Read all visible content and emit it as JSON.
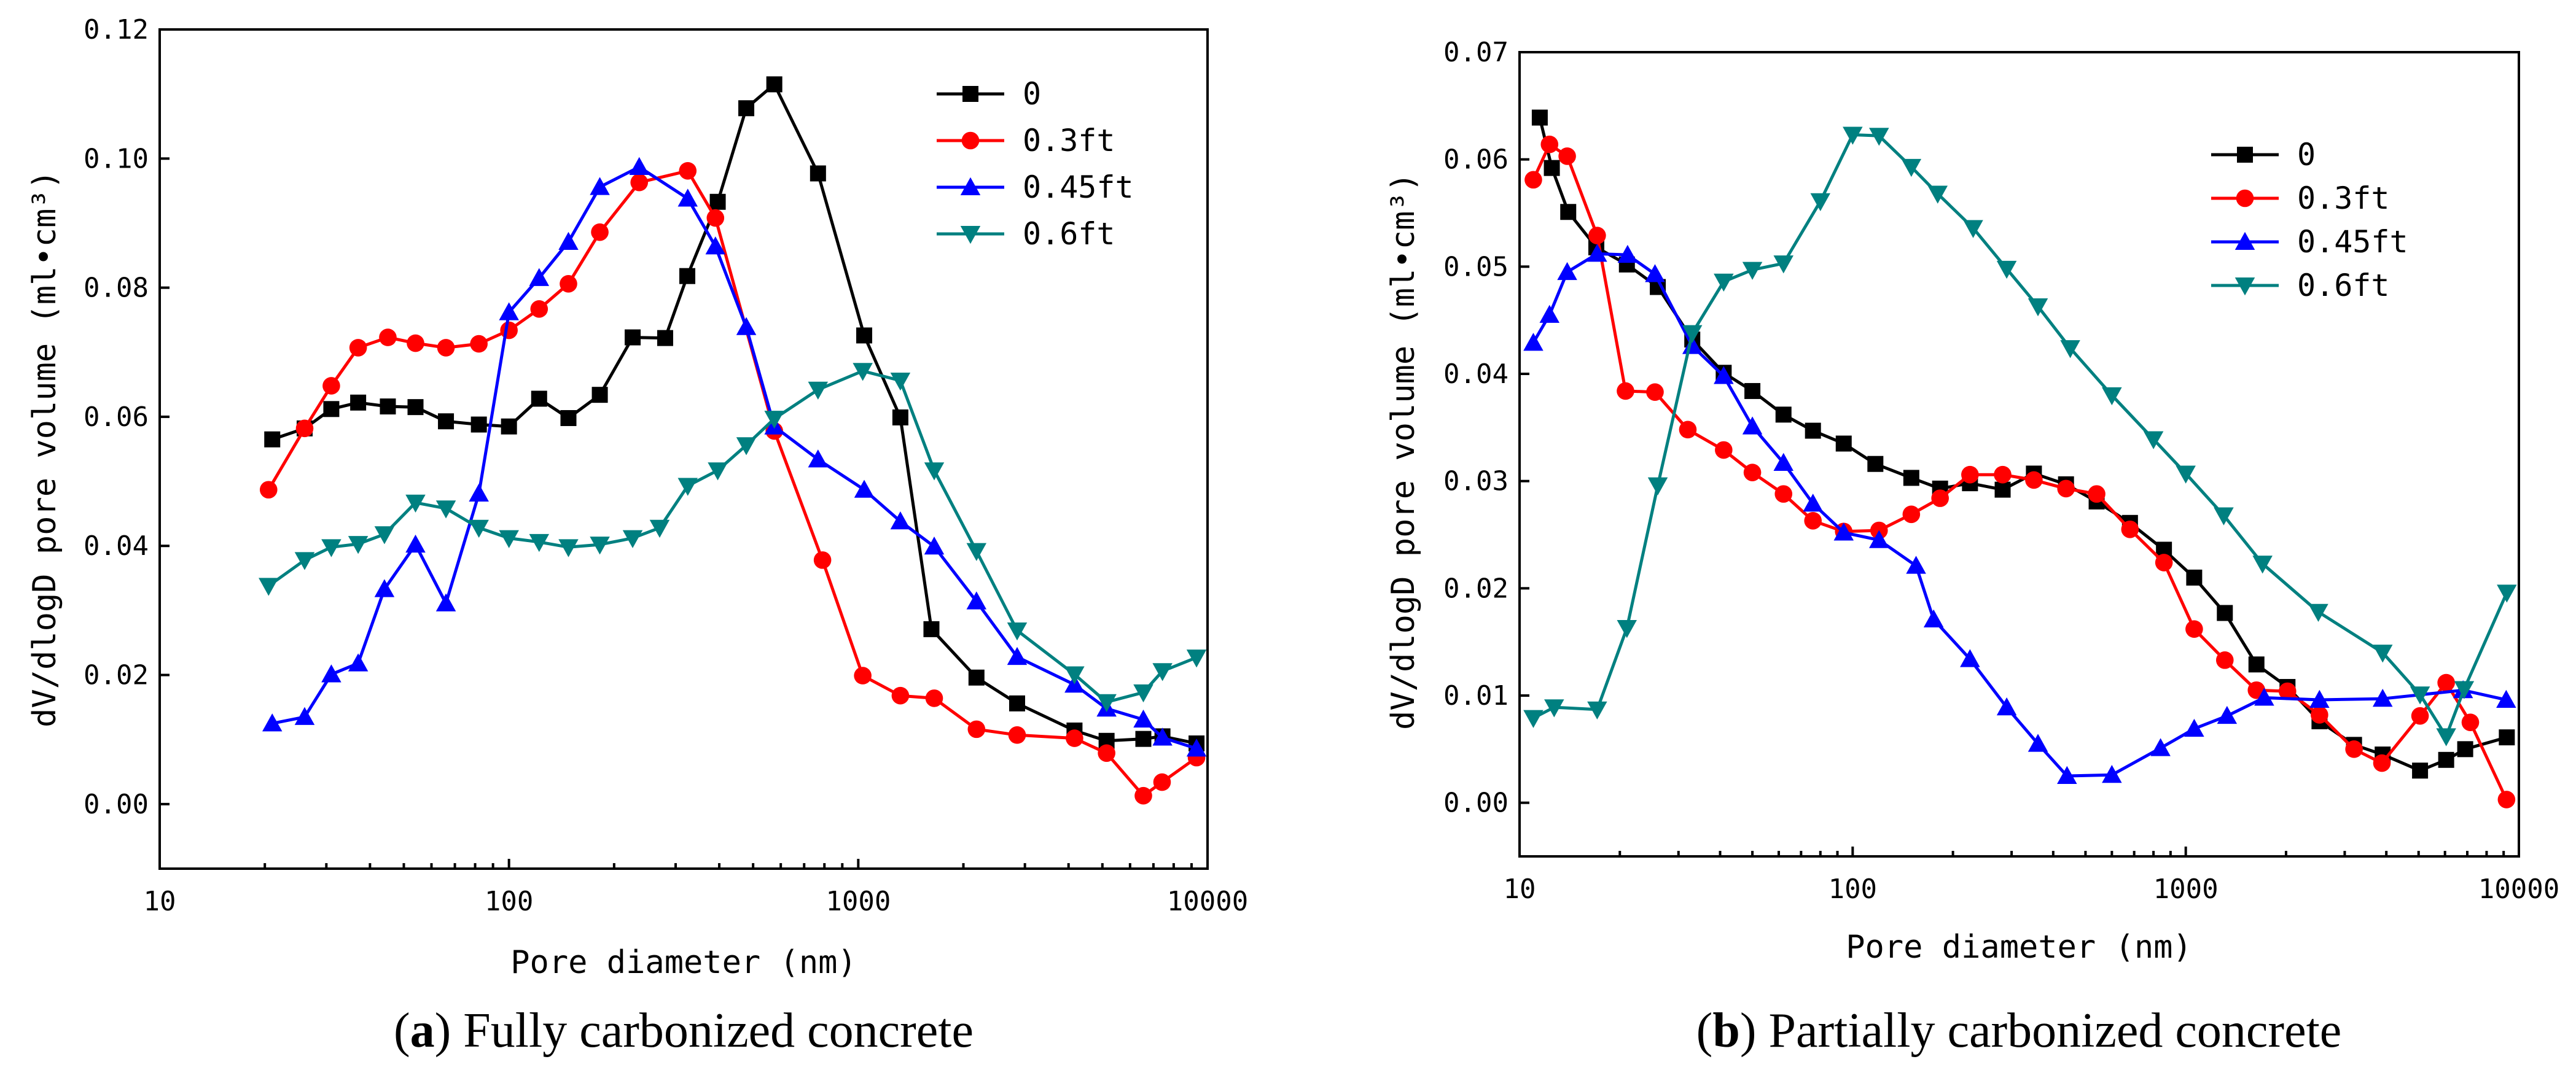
{
  "chart_data": [
    {
      "type": "line",
      "panel_label": "a",
      "caption": "Fully carbonized concrete",
      "xlabel": "Pore diameter (nm)",
      "ylabel": "dV/dlogD pore volume (ml•cm³)",
      "xscale": "log",
      "xlim": [
        10,
        10000
      ],
      "ylim": [
        -0.01,
        0.12
      ],
      "xticks": [
        10,
        100,
        1000,
        10000
      ],
      "xtick_labels": [
        "10",
        "100",
        "1000",
        "10000"
      ],
      "yticks": [
        0.0,
        0.02,
        0.04,
        0.06,
        0.08,
        0.1,
        0.12
      ],
      "ytick_labels": [
        "0.00",
        "0.02",
        "0.04",
        "0.06",
        "0.08",
        "0.10",
        "0.12"
      ],
      "legend_position": "top-right",
      "series": [
        {
          "name": "0",
          "color": "#000000",
          "marker": "square",
          "x": [
            21,
            26,
            31,
            37,
            45,
            54,
            66,
            82,
            100,
            122,
            148,
            182,
            226,
            280,
            324,
            396,
            478,
            575,
            767,
            1040,
            1320,
            1620,
            2180,
            2850,
            4160,
            5140,
            6550,
            7430,
            9300
          ],
          "y": [
            0.0565,
            0.0582,
            0.0612,
            0.0622,
            0.0616,
            0.0615,
            0.0593,
            0.0588,
            0.0585,
            0.0628,
            0.0598,
            0.0634,
            0.0723,
            0.0722,
            0.0818,
            0.0933,
            0.1078,
            0.1115,
            0.0977,
            0.0726,
            0.0599,
            0.0271,
            0.0196,
            0.0156,
            0.0114,
            0.0098,
            0.0101,
            0.0105,
            0.0094
          ]
        },
        {
          "name": "0.3ft",
          "color": "#ff0000",
          "marker": "circle",
          "x": [
            20.5,
            26,
            31,
            37,
            45,
            54,
            66,
            82,
            100,
            122,
            148,
            182,
            236,
            325,
            390,
            575,
            790,
            1030,
            1320,
            1650,
            2180,
            2850,
            4160,
            5140,
            6550,
            7410,
            9300
          ],
          "y": [
            0.0487,
            0.0582,
            0.0648,
            0.0707,
            0.0723,
            0.0714,
            0.0707,
            0.0713,
            0.0734,
            0.0767,
            0.0806,
            0.0886,
            0.0963,
            0.0981,
            0.0908,
            0.0578,
            0.0378,
            0.0199,
            0.0168,
            0.0164,
            0.0116,
            0.0107,
            0.0102,
            0.0079,
            0.0013,
            0.0034,
            0.0072
          ]
        },
        {
          "name": "0.45ft",
          "color": "#0000ff",
          "marker": "triangle-up",
          "x": [
            21,
            26,
            31,
            37,
            44,
            54,
            66,
            82,
            100,
            122,
            148,
            182,
            236,
            325,
            390,
            478,
            575,
            767,
            1040,
            1320,
            1650,
            2180,
            2850,
            4160,
            5140,
            6550,
            7430,
            9300
          ],
          "y": [
            0.0125,
            0.0135,
            0.0201,
            0.0218,
            0.0333,
            0.0402,
            0.0311,
            0.0481,
            0.0762,
            0.0815,
            0.0871,
            0.0956,
            0.0987,
            0.0938,
            0.0864,
            0.0739,
            0.0585,
            0.0534,
            0.0487,
            0.0438,
            0.0399,
            0.0314,
            0.0228,
            0.0185,
            0.0148,
            0.0131,
            0.0103,
            0.0086
          ]
        },
        {
          "name": "0.6ft",
          "color": "#008080",
          "marker": "triangle-down",
          "x": [
            20.5,
            26,
            31,
            37,
            44,
            54,
            66,
            82,
            100,
            122,
            148,
            182,
            226,
            270,
            325,
            396,
            478,
            575,
            767,
            1030,
            1320,
            1650,
            2180,
            2850,
            4160,
            5140,
            6550,
            7430,
            9300
          ],
          "y": [
            0.0338,
            0.0378,
            0.0398,
            0.0403,
            0.0418,
            0.0467,
            0.0458,
            0.0428,
            0.0412,
            0.0406,
            0.0398,
            0.0402,
            0.0412,
            0.0428,
            0.0493,
            0.0517,
            0.0556,
            0.0597,
            0.0642,
            0.0671,
            0.0656,
            0.0517,
            0.0392,
            0.0269,
            0.0201,
            0.0158,
            0.0173,
            0.0206,
            0.0227
          ]
        }
      ]
    },
    {
      "type": "line",
      "panel_label": "b",
      "caption": "Partially carbonized concrete",
      "xlabel": "Pore diameter (nm)",
      "ylabel": "dV/dlogD pore volume (ml•cm³)",
      "xscale": "log",
      "xlim": [
        10,
        10000
      ],
      "ylim": [
        -0.005,
        0.07
      ],
      "xticks": [
        10,
        100,
        1000,
        10000
      ],
      "xtick_labels": [
        "10",
        "100",
        "1000",
        "10000"
      ],
      "yticks": [
        0.0,
        0.01,
        0.02,
        0.03,
        0.04,
        0.05,
        0.06,
        0.07
      ],
      "ytick_labels": [
        "0.00",
        "0.01",
        "0.02",
        "0.03",
        "0.04",
        "0.05",
        "0.06",
        "0.07"
      ],
      "legend_position": "top-right",
      "series": [
        {
          "name": "0",
          "color": "#000000",
          "marker": "square",
          "x": [
            11.5,
            12.5,
            14,
            17,
            21,
            26,
            33,
            41,
            50,
            62,
            76,
            94,
            117,
            150,
            183,
            225,
            282,
            350,
            437,
            540,
            680,
            860,
            1060,
            1310,
            1630,
            2020,
            2520,
            3200,
            3900,
            5050,
            6050,
            6900,
            9200
          ],
          "y": [
            0.0639,
            0.0592,
            0.0551,
            0.0518,
            0.0502,
            0.0481,
            0.0432,
            0.0401,
            0.0384,
            0.0362,
            0.0347,
            0.0335,
            0.0316,
            0.0303,
            0.0293,
            0.0298,
            0.0292,
            0.0307,
            0.0297,
            0.0281,
            0.0261,
            0.0236,
            0.021,
            0.0177,
            0.0129,
            0.0108,
            0.0076,
            0.0054,
            0.0045,
            0.003,
            0.004,
            0.005,
            0.0061
          ]
        },
        {
          "name": "0.3ft",
          "color": "#ff0000",
          "marker": "circle",
          "x": [
            11,
            12.3,
            13.9,
            17.1,
            20.8,
            25.5,
            32,
            41,
            50,
            62,
            76,
            94,
            120,
            150,
            183,
            225,
            282,
            350,
            437,
            540,
            680,
            860,
            1060,
            1310,
            1630,
            2020,
            2520,
            3200,
            3880,
            5050,
            6050,
            7150,
            9180
          ],
          "y": [
            0.0581,
            0.0614,
            0.0603,
            0.0529,
            0.0384,
            0.0383,
            0.0348,
            0.0329,
            0.0308,
            0.0288,
            0.0263,
            0.0253,
            0.0254,
            0.0269,
            0.0284,
            0.0306,
            0.0306,
            0.0301,
            0.0293,
            0.0288,
            0.0255,
            0.0224,
            0.0162,
            0.0133,
            0.0105,
            0.0104,
            0.0082,
            0.005,
            0.0037,
            0.0081,
            0.0112,
            0.0075,
            0.0003
          ]
        },
        {
          "name": "0.45ft",
          "color": "#0000ff",
          "marker": "triangle-up",
          "x": [
            11,
            12.3,
            13.9,
            17.1,
            21.1,
            25.5,
            33,
            41,
            50,
            62,
            76,
            94,
            120,
            155,
            175,
            225,
            290,
            360,
            440,
            600,
            840,
            1060,
            1330,
            1720,
            2520,
            3900,
            6800,
            9160
          ],
          "y": [
            0.0429,
            0.0455,
            0.0495,
            0.0512,
            0.0511,
            0.0493,
            0.0426,
            0.0398,
            0.0351,
            0.0317,
            0.0279,
            0.0252,
            0.0245,
            0.0221,
            0.0171,
            0.0134,
            0.0089,
            0.0055,
            0.0025,
            0.0026,
            0.0051,
            0.0069,
            0.0081,
            0.0098,
            0.0096,
            0.0097,
            0.0105,
            0.0096
          ]
        },
        {
          "name": "0.6ft",
          "color": "#008080",
          "marker": "triangle-down",
          "x": [
            11,
            12.7,
            17.1,
            21,
            26,
            33,
            41,
            50,
            62,
            80,
            100,
            120,
            150,
            180,
            230,
            290,
            360,
            450,
            600,
            800,
            1000,
            1300,
            1700,
            2500,
            3900,
            5050,
            6050,
            6850,
            9200
          ],
          "y": [
            0.0079,
            0.0089,
            0.0087,
            0.0163,
            0.0296,
            0.0438,
            0.0486,
            0.0497,
            0.0503,
            0.0561,
            0.0623,
            0.0622,
            0.0593,
            0.0568,
            0.0536,
            0.0498,
            0.0463,
            0.0424,
            0.038,
            0.0339,
            0.0307,
            0.0268,
            0.0223,
            0.0178,
            0.014,
            0.0101,
            0.0062,
            0.0106,
            0.0196
          ]
        }
      ]
    }
  ]
}
